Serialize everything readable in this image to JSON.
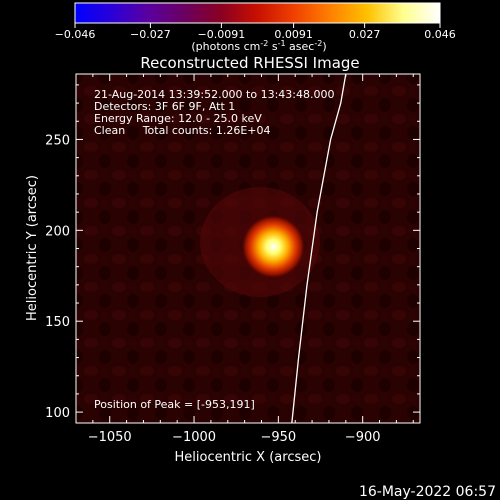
{
  "colorbar": {
    "ticks": [
      "-0.046",
      "-0.027",
      "-0.0091",
      "0.0091",
      "0.027",
      "0.046"
    ],
    "tick_values": [
      -0.046,
      -0.027,
      -0.0091,
      0.0091,
      0.027,
      0.046
    ],
    "unit_main": "(photons cm",
    "unit_exp1": "-2",
    "unit_mid": " s",
    "unit_exp2": "-1",
    "unit_end": " asec",
    "unit_exp3": "-2",
    "unit_close": ")",
    "colors": [
      "#0000ff",
      "#2a00d8",
      "#5a00a0",
      "#6a0060",
      "#8a0022",
      "#c81000",
      "#f04000",
      "#ff8000",
      "#ffc000",
      "#ffff90",
      "#ffffff"
    ]
  },
  "plot": {
    "annotation_lines": [
      "21-Aug-2014 13:39:52.000 to 13:43:48.000",
      "Detectors: 3F 6F 9F, Att 1",
      "Energy Range: 12.0 - 25.0 keV",
      "Clean     Total counts: 1.26E+04"
    ],
    "peak_label": "Position of Peak = [-953,191]"
  },
  "footer": {
    "timestamp": "16-May-2022 06:57"
  },
  "chart_data": {
    "type": "heatmap",
    "title": "Reconstructed RHESSI Image",
    "xlabel": "Heliocentric X (arcsec)",
    "ylabel": "Heliocentric Y (arcsec)",
    "xlim": [
      -1070,
      -866
    ],
    "ylim": [
      94,
      286
    ],
    "xticks": [
      -1050,
      -1000,
      -950,
      -900
    ],
    "yticks": [
      100,
      150,
      200,
      250
    ],
    "xtick_labels": [
      "−1050",
      "−1000",
      "−950",
      "−900"
    ],
    "ytick_labels": [
      "100",
      "150",
      "200",
      "250"
    ],
    "peak": {
      "x": -953,
      "y": 191
    },
    "limb_points": [
      [
        -942,
        94
      ],
      [
        -938,
        130
      ],
      [
        -933,
        170
      ],
      [
        -927,
        210
      ],
      [
        -919,
        250
      ],
      [
        -913,
        270
      ],
      [
        -910,
        286
      ]
    ]
  }
}
